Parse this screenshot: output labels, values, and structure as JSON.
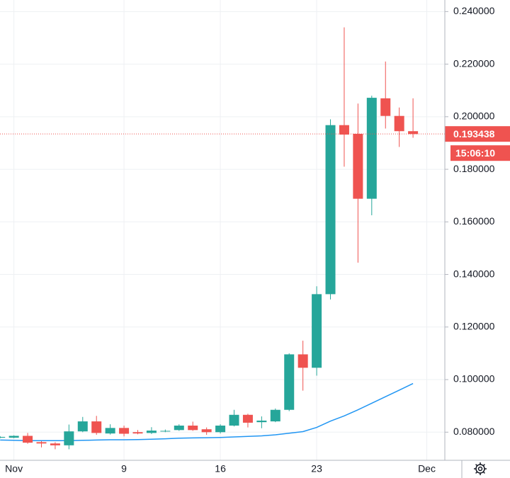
{
  "chart_data": {
    "type": "candlestick",
    "categories": [
      null,
      "Nov",
      null,
      null,
      null,
      null,
      null,
      null,
      null,
      "9",
      null,
      null,
      null,
      null,
      null,
      null,
      "16",
      null,
      null,
      null,
      null,
      null,
      null,
      "23",
      null,
      null,
      null,
      null,
      null,
      null,
      null,
      "Dec"
    ],
    "open": [
      0.0779,
      0.0779,
      0.0786,
      0.0762,
      0.0757,
      0.075,
      0.0803,
      0.0841,
      0.0795,
      0.0816,
      0.08,
      0.0797,
      0.0803,
      0.0808,
      0.0825,
      0.0811,
      0.08,
      0.0825,
      0.0866,
      0.0838,
      0.0841,
      0.0885,
      0.1096,
      0.1045,
      0.1325,
      0.1968,
      0.1935,
      0.1688,
      0.207,
      0.2003,
      0.1945,
      null
    ],
    "high": [
      0.0785,
      0.0788,
      0.0797,
      0.0766,
      0.0762,
      0.0829,
      0.0858,
      0.0862,
      0.083,
      0.0825,
      0.0808,
      0.0819,
      0.081,
      0.083,
      0.084,
      0.0818,
      0.083,
      0.0885,
      0.087,
      0.086,
      0.089,
      0.11,
      0.1148,
      0.1355,
      0.199,
      0.234,
      0.205,
      0.208,
      0.221,
      0.2035,
      0.207,
      null
    ],
    "low": [
      0.0777,
      0.0777,
      0.0756,
      0.0742,
      0.0735,
      0.0735,
      0.08,
      0.079,
      0.0791,
      0.0784,
      0.0792,
      0.0793,
      0.08,
      0.0805,
      0.0805,
      0.079,
      0.0795,
      0.0822,
      0.0818,
      0.0815,
      0.0838,
      0.088,
      0.0958,
      0.1015,
      0.1305,
      0.181,
      0.1445,
      0.1625,
      0.1955,
      0.1885,
      0.192,
      null
    ],
    "close": [
      0.0782,
      0.0786,
      0.076,
      0.0757,
      0.075,
      0.0803,
      0.0841,
      0.0797,
      0.0816,
      0.0794,
      0.0795,
      0.0806,
      0.0805,
      0.0825,
      0.0808,
      0.08,
      0.0825,
      0.0866,
      0.0836,
      0.0844,
      0.0885,
      0.1096,
      0.1045,
      0.1325,
      0.1968,
      0.1932,
      0.1688,
      0.2072,
      0.2003,
      0.1945,
      0.1934,
      null
    ],
    "up_color": "#26a69a",
    "down_color": "#ef5350",
    "ma_color": "#2196f3",
    "ma_values": [
      0.077,
      0.0769,
      0.0768,
      0.0768,
      0.0768,
      0.0768,
      0.0769,
      0.077,
      0.0771,
      0.0771,
      0.0772,
      0.0773,
      0.0775,
      0.0777,
      0.0778,
      0.0779,
      0.078,
      0.0782,
      0.0784,
      0.0786,
      0.079,
      0.0796,
      0.0802,
      0.0818,
      0.0842,
      0.0862,
      0.0885,
      0.091,
      0.0935,
      0.096,
      0.0985,
      null
    ],
    "ylim": [
      0.0693,
      0.2444
    ],
    "yticks": [
      {
        "value": 0.08,
        "label": "0.080000"
      },
      {
        "value": 0.1,
        "label": "0.100000"
      },
      {
        "value": 0.12,
        "label": "0.120000"
      },
      {
        "value": 0.14,
        "label": "0.140000"
      },
      {
        "value": 0.16,
        "label": "0.160000"
      },
      {
        "value": 0.18,
        "label": "0.180000"
      },
      {
        "value": 0.2,
        "label": "0.200000"
      },
      {
        "value": 0.22,
        "label": "0.220000"
      },
      {
        "value": 0.24,
        "label": "0.240000"
      }
    ],
    "grid": true,
    "last_price": {
      "value": 0.193438,
      "label": "0.193438"
    },
    "countdown": "15:06:10"
  }
}
